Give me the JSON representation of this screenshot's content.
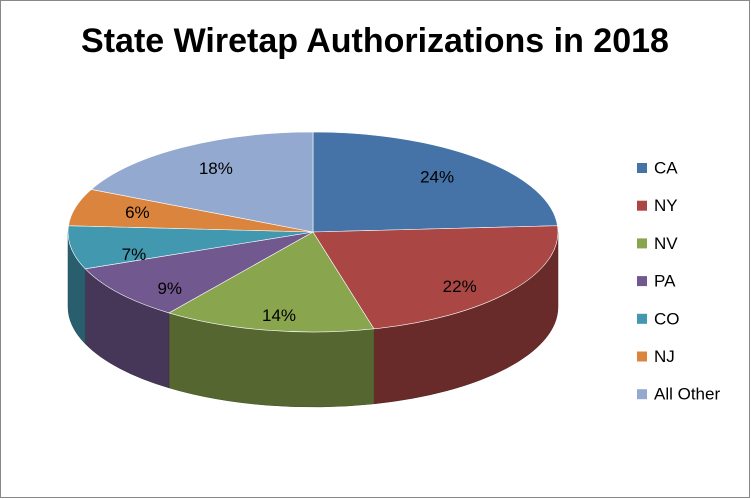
{
  "chart_data": {
    "type": "pie",
    "title": "State Wiretap Authorizations in 2018",
    "categories": [
      "CA",
      "NY",
      "NV",
      "PA",
      "CO",
      "NJ",
      "All Other"
    ],
    "values": [
      24,
      22,
      14,
      9,
      7,
      6,
      18
    ],
    "value_labels": [
      "24%",
      "22%",
      "14%",
      "9%",
      "7%",
      "6%",
      "18%"
    ],
    "colors": [
      "#4572A7",
      "#AA4643",
      "#89A54E",
      "#71588F",
      "#4198AF",
      "#DB843D",
      "#93A9CF"
    ],
    "legend": "right"
  }
}
